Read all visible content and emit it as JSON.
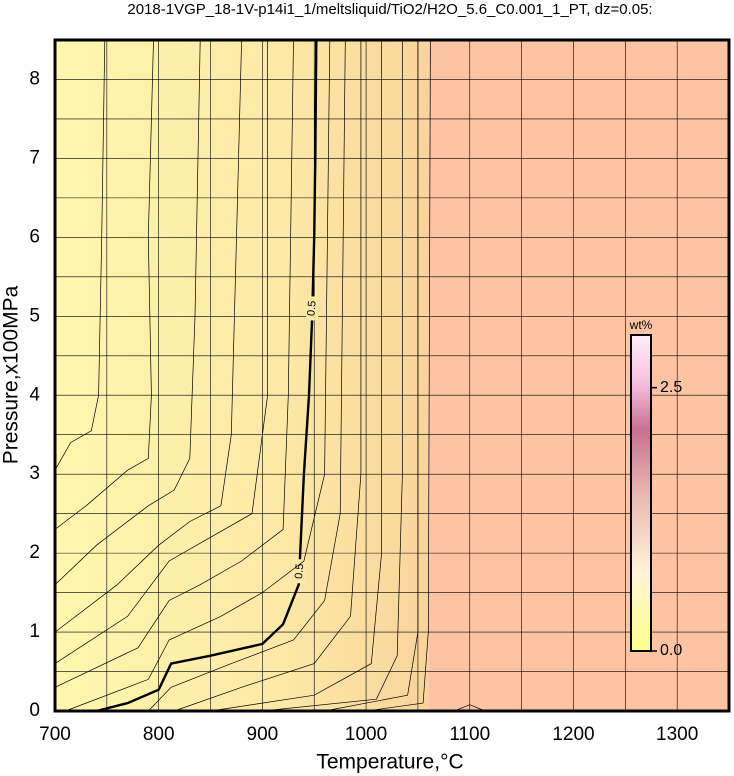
{
  "chart_data": {
    "type": "contour",
    "title": "2018-1VGP_18-1V-p14i1_1/meltsliquid/TiO2/H2O_5.6_C0.001_1_PT, dz=0.05:",
    "xlabel": "Temperature,°C",
    "ylabel": "Pressure,x100MPa",
    "xlim": [
      700,
      1350
    ],
    "ylim": [
      0,
      8.5
    ],
    "xticks": [
      700,
      800,
      900,
      1000,
      1100,
      1200,
      1300
    ],
    "yticks": [
      0,
      1,
      2,
      3,
      4,
      5,
      6,
      7,
      8
    ],
    "xminor": [
      750,
      850,
      950,
      1050,
      1150,
      1250
    ],
    "yminor": [
      0.5,
      1.5,
      2.5,
      3.5,
      4.5,
      5.5,
      6.5,
      7.5
    ],
    "grid": true,
    "colorbar": {
      "label": "wt%",
      "lim": [
        0,
        3.0
      ],
      "ticks": [
        {
          "value": 0,
          "label": "0.0"
        },
        2.5
      ]
    },
    "contours": [
      {
        "level": 0.5,
        "x": [
          740,
          770,
          800,
          812,
          850,
          900,
          920,
          935,
          940,
          945,
          948,
          950,
          951,
          952
        ],
        "y": [
          0,
          0.1,
          0.27,
          0.6,
          0.7,
          0.85,
          1.1,
          1.6,
          3,
          4,
          5,
          6,
          7,
          8.5
        ]
      },
      {
        "x": [
          700,
          715,
          735,
          742,
          745,
          748
        ],
        "y": [
          3.05,
          3.4,
          3.55,
          4,
          6,
          8.5
        ]
      },
      {
        "x": [
          700,
          730,
          770,
          790,
          793,
          790,
          795
        ],
        "y": [
          2.3,
          2.6,
          3.05,
          3.2,
          4,
          6,
          8.5
        ]
      },
      {
        "x": [
          700,
          740,
          790,
          815,
          830,
          835,
          840
        ],
        "y": [
          1.6,
          2.1,
          2.6,
          2.8,
          3.2,
          5,
          8.5
        ]
      },
      {
        "x": [
          700,
          760,
          800,
          830,
          860,
          870,
          875,
          880
        ],
        "y": [
          1.0,
          1.6,
          2.1,
          2.4,
          2.6,
          3.5,
          6,
          8.5
        ]
      },
      {
        "x": [
          700,
          770,
          810,
          850,
          890,
          905,
          905
        ],
        "y": [
          0.6,
          1.2,
          1.9,
          2.2,
          2.5,
          4,
          8.5
        ]
      },
      {
        "x": [
          700,
          780,
          810,
          840,
          880,
          920,
          925,
          930
        ],
        "y": [
          0.3,
          0.8,
          1.4,
          1.6,
          1.9,
          2.3,
          4,
          8.5
        ]
      },
      {
        "x": [
          710,
          790,
          810,
          860,
          900,
          940,
          960,
          965
        ],
        "y": [
          0,
          0.4,
          0.9,
          1.2,
          1.5,
          1.9,
          3,
          8.5
        ]
      },
      {
        "x": [
          790,
          812,
          870,
          930,
          960,
          975,
          980
        ],
        "y": [
          0,
          0.3,
          0.6,
          0.9,
          1.4,
          2.5,
          8.5
        ]
      },
      {
        "x": [
          815,
          880,
          950,
          985,
          995,
          995
        ],
        "y": [
          0,
          0.3,
          0.6,
          1.2,
          3,
          8.5
        ]
      },
      {
        "x": [
          850,
          950,
          1005,
          1015,
          1015
        ],
        "y": [
          0,
          0.2,
          0.6,
          2,
          8.5
        ]
      },
      {
        "x": [
          900,
          1010,
          1030,
          1035,
          1035
        ],
        "y": [
          0,
          0.15,
          0.7,
          3,
          8.5
        ]
      },
      {
        "x": [
          960,
          1040,
          1050,
          1050
        ],
        "y": [
          0,
          0.2,
          1,
          8.5
        ]
      },
      {
        "x": [
          1000,
          1055,
          1060,
          1062
        ],
        "y": [
          0,
          0.1,
          1,
          8.5
        ]
      },
      {
        "x": [
          1085,
          1100,
          1115
        ],
        "y": [
          0,
          0.08,
          0
        ]
      }
    ]
  }
}
